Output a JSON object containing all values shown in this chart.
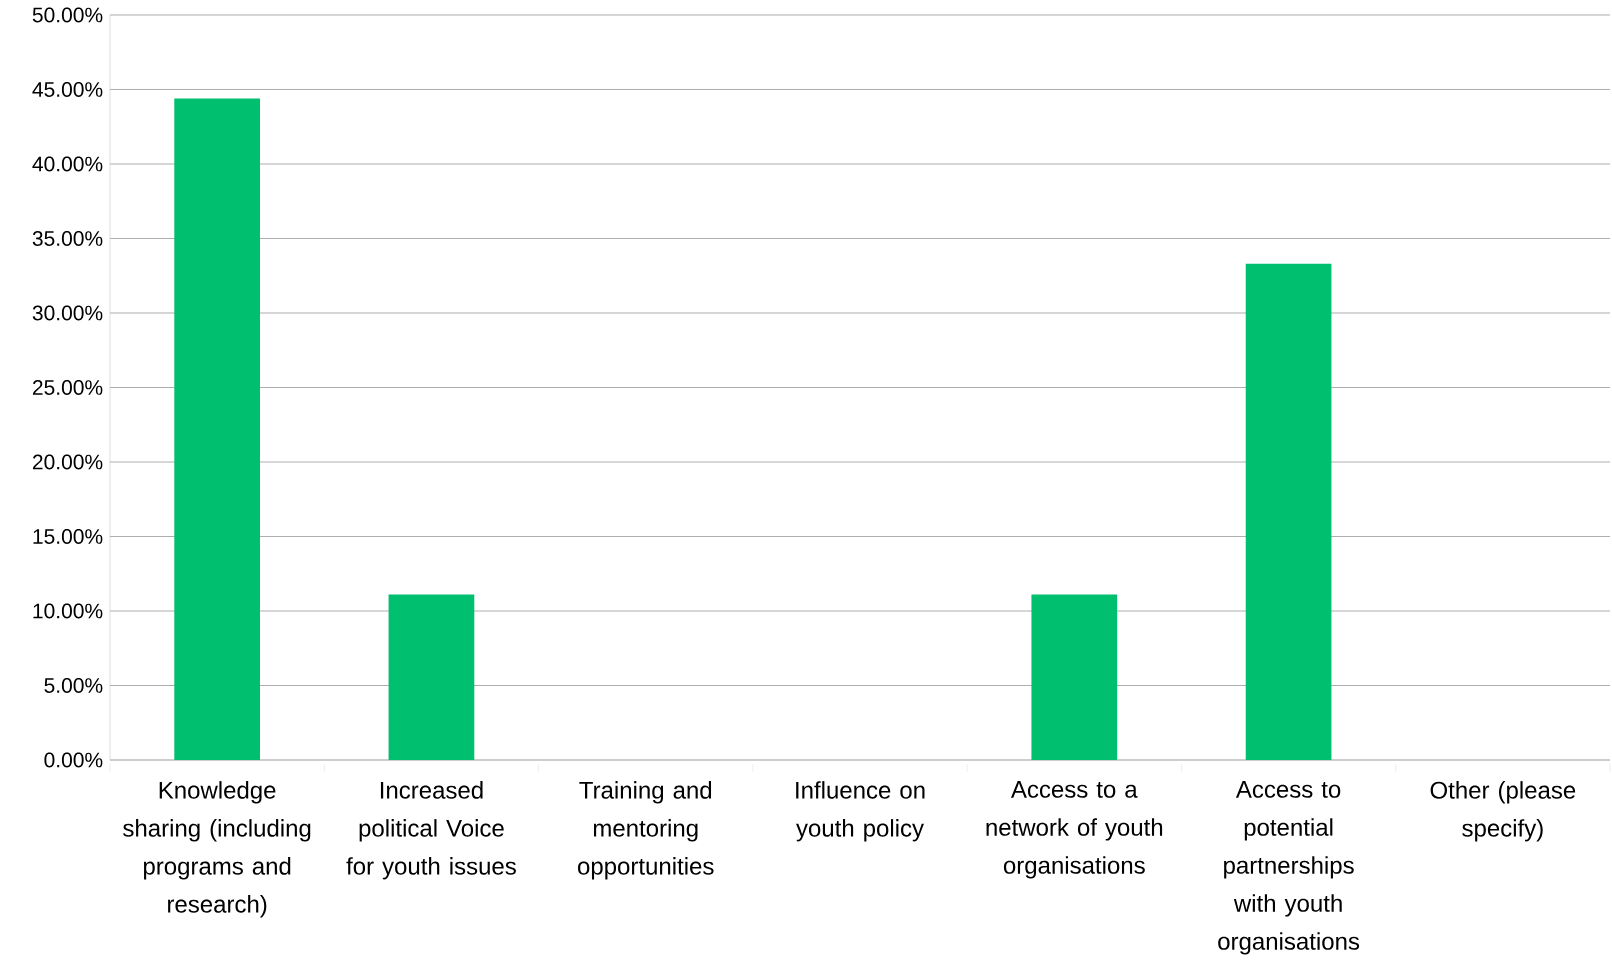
{
  "chart_data": {
    "type": "bar",
    "categories": [
      "Knowledge sharing (including programs and research)",
      "Increased political Voice for youth issues",
      "Training and mentoring opportunities",
      "Influence on youth policy",
      "Access to a network of youth organisations",
      "Access to potential partnerships with youth organisations",
      "Other (please specify)"
    ],
    "values": [
      44.4,
      11.1,
      0,
      0,
      11.1,
      33.3,
      0
    ],
    "color": "#00bf6f",
    "ylim": [
      0,
      50
    ],
    "yticks": [
      {
        "value": 0,
        "label": "0.00%"
      },
      {
        "value": 5,
        "label": "5.00%"
      },
      {
        "value": 10,
        "label": "10.00%"
      },
      {
        "value": 15,
        "label": "15.00%"
      },
      {
        "value": 20,
        "label": "20.00%"
      },
      {
        "value": 25,
        "label": "25.00%"
      },
      {
        "value": 30,
        "label": "30.00%"
      },
      {
        "value": 35,
        "label": "35.00%"
      },
      {
        "value": 40,
        "label": "40.00%"
      },
      {
        "value": 45,
        "label": "45.00%"
      },
      {
        "value": 50,
        "label": "50.00%"
      }
    ],
    "grid": "y"
  }
}
